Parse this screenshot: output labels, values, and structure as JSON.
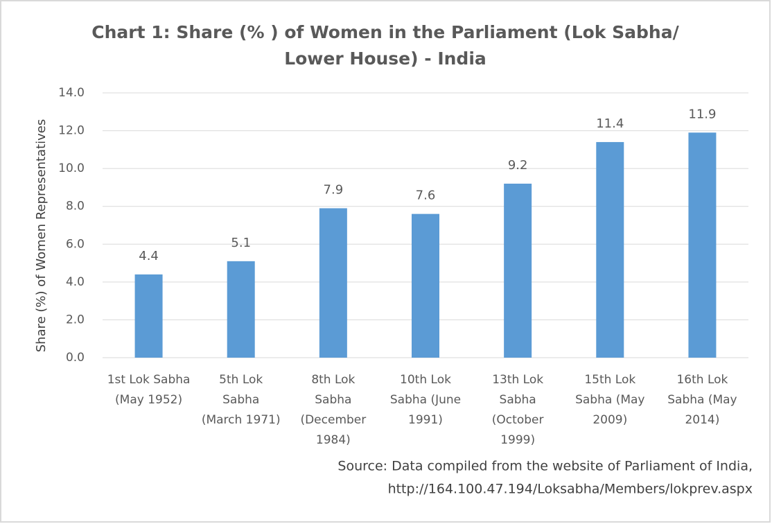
{
  "chart_data": {
    "type": "bar",
    "title": [
      "Chart 1: Share (% ) of Women in the Parliament (Lok Sabha/",
      "Lower House) - India"
    ],
    "y_label": "Share (%) of Women Representatives",
    "categories": [
      "1st Lok Sabha\n(May 1952)",
      "5th Lok\nSabha\n(March 1971)",
      "8th Lok\nSabha\n(December\n1984)",
      "10th Lok\nSabha (June\n1991)",
      "13th Lok\nSabha\n(October\n1999)",
      "15th Lok\nSabha (May\n2009)",
      "16th Lok\nSabha (May\n2014)"
    ],
    "values": [
      4.4,
      5.1,
      7.9,
      7.6,
      9.2,
      11.4,
      11.9
    ],
    "color": "#5b9bd5",
    "ylim": [
      0,
      14
    ],
    "yticks": [
      {
        "value": 0,
        "label": "0.0"
      },
      {
        "value": 2,
        "label": "2.0"
      },
      {
        "value": 4,
        "label": "4.0"
      },
      {
        "value": 6,
        "label": "6.0"
      },
      {
        "value": 8,
        "label": "8.0"
      },
      {
        "value": 10,
        "label": "10.0"
      },
      {
        "value": 12,
        "label": "12.0"
      },
      {
        "value": 14,
        "label": "14.0"
      }
    ],
    "grid": true,
    "source": [
      "Source: Data compiled from the website of Parliament of India,",
      "http://164.100.47.194/Loksabha/Members/lokprev.aspx"
    ]
  }
}
